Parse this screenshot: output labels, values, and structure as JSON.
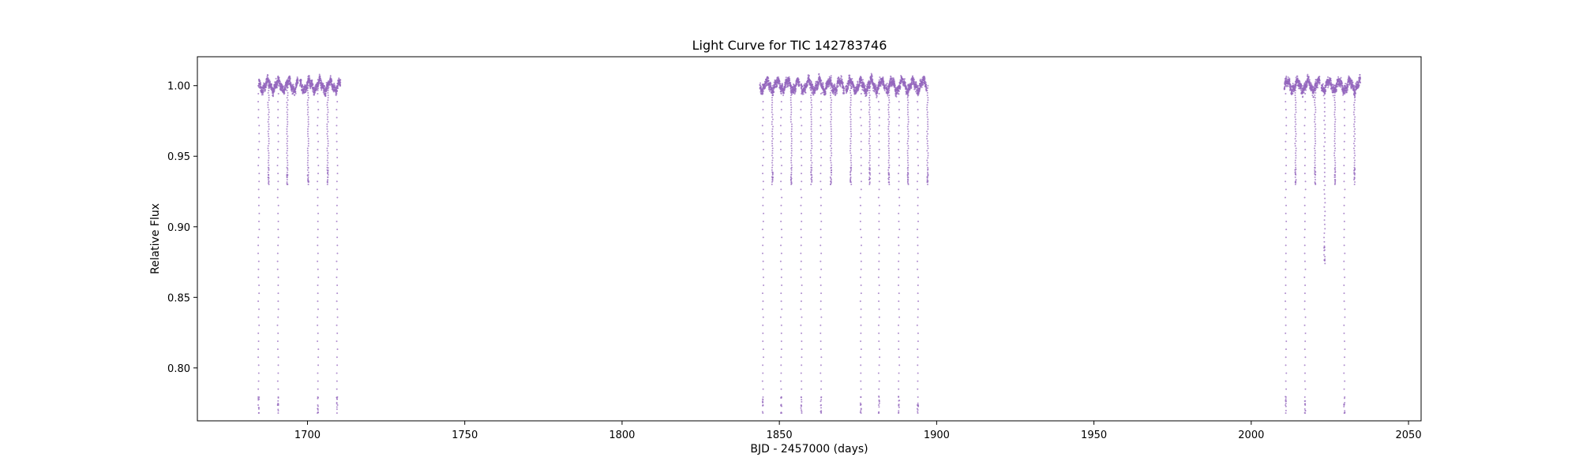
{
  "chart_data": {
    "type": "scatter",
    "title": "Light Curve for TIC 142783746",
    "xlabel": "BJD - 2457000 (days)",
    "ylabel": "Relative Flux",
    "xlim": [
      1665,
      2054
    ],
    "ylim": [
      0.7625,
      1.0205
    ],
    "xticks": [
      1700,
      1750,
      1800,
      1850,
      1900,
      1950,
      2000,
      2050
    ],
    "yticks": [
      0.8,
      0.85,
      0.9,
      0.95,
      1.0
    ],
    "grid": false,
    "legend": "none",
    "marker_color": "#9467bd",
    "baseline_flux": 1.0,
    "observing_segments": [
      [
        1684.5,
        1697.0
      ],
      [
        1697.6,
        1710.5
      ],
      [
        1843.8,
        1856.4
      ],
      [
        1856.9,
        1870.6
      ],
      [
        1871.1,
        1883.6
      ],
      [
        1883.9,
        1896.8
      ],
      [
        2010.5,
        2021.8
      ],
      [
        2022.3,
        2034.7
      ]
    ],
    "primary_eclipse_times": [
      1684.5,
      1690.6,
      1703.3,
      1709.4,
      1844.8,
      1850.6,
      1857.0,
      1863.2,
      1875.9,
      1881.7,
      1888.0,
      1894.0,
      2011.0,
      2017.1,
      2029.6
    ],
    "primary_eclipse_min_flux": 0.768,
    "secondary_eclipse_times": [
      1687.6,
      1693.6,
      1700.2,
      1706.4,
      1847.8,
      1853.8,
      1860.2,
      1866.4,
      1872.7,
      1878.7,
      1884.8,
      1890.9,
      1897.1,
      2014.1,
      2020.3,
      2026.6,
      2032.8
    ],
    "secondary_eclipse_min_flux": 0.93,
    "partial_eclipse_times": [
      2023.3
    ],
    "partial_eclipse_min_flux": 0.874
  }
}
